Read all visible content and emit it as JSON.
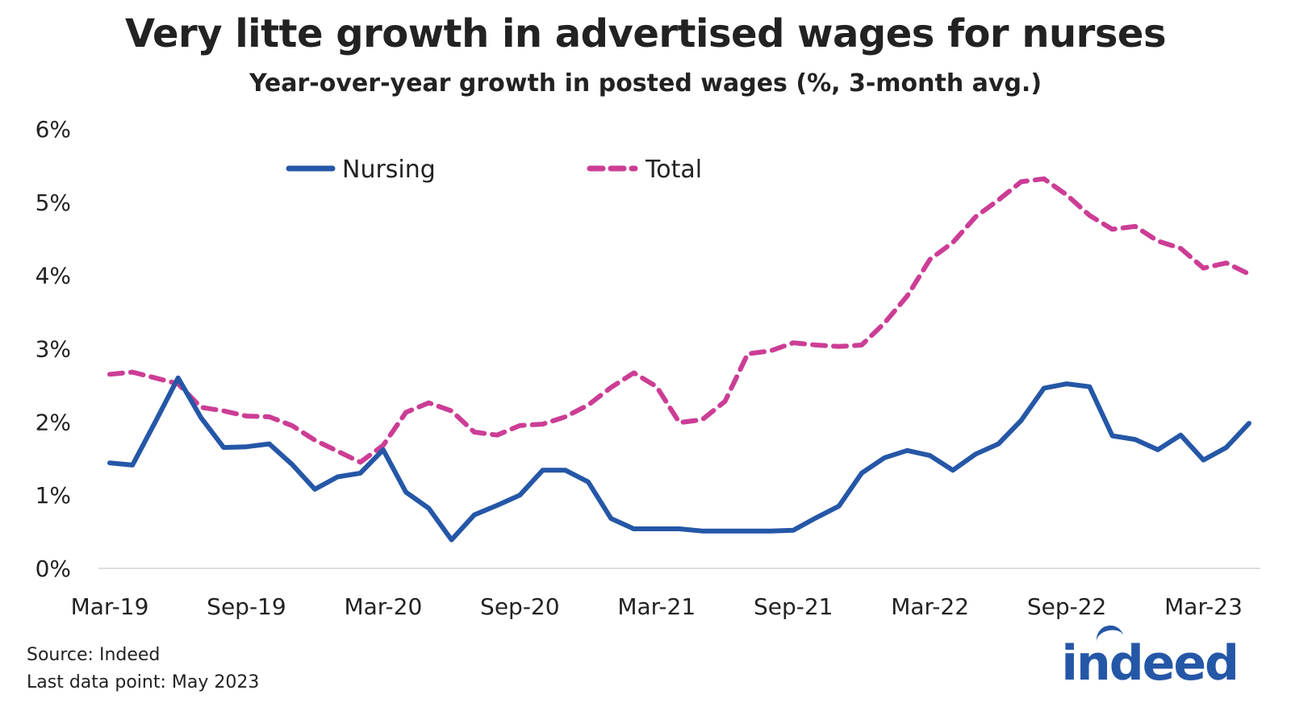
{
  "title": "Very litte growth in advertised wages for nurses",
  "subtitle": "Year-over-year growth in posted wages (%, 3-month avg.)",
  "footer": {
    "source": "Source: Indeed",
    "last_data_point": "Last data point: May 2023"
  },
  "logo_text": "indeed",
  "colors": {
    "nursing": "#2557a7",
    "total": "#cc3d95",
    "axis": "#dddddd",
    "text": "#222222"
  },
  "chart_data": {
    "type": "line",
    "title": "Very litte growth in advertised wages for nurses",
    "subtitle": "Year-over-year growth in posted wages (%, 3-month avg.)",
    "xlabel": "",
    "ylabel": "",
    "ylim": [
      0,
      6
    ],
    "yticks": [
      0,
      1,
      2,
      3,
      4,
      5,
      6
    ],
    "ytick_labels": [
      "0%",
      "1%",
      "2%",
      "3%",
      "4%",
      "5%",
      "6%"
    ],
    "xtick_labels": [
      "Mar-19",
      "Sep-19",
      "Mar-20",
      "Sep-20",
      "Mar-21",
      "Sep-21",
      "Mar-22",
      "Sep-22",
      "Mar-23"
    ],
    "xtick_indices": [
      0,
      6,
      12,
      18,
      24,
      30,
      36,
      42,
      48
    ],
    "x": [
      "Mar-19",
      "Apr-19",
      "May-19",
      "Jun-19",
      "Jul-19",
      "Aug-19",
      "Sep-19",
      "Oct-19",
      "Nov-19",
      "Dec-19",
      "Jan-20",
      "Feb-20",
      "Mar-20",
      "Apr-20",
      "May-20",
      "Jun-20",
      "Jul-20",
      "Aug-20",
      "Sep-20",
      "Oct-20",
      "Nov-20",
      "Dec-20",
      "Jan-21",
      "Feb-21",
      "Mar-21",
      "Apr-21",
      "May-21",
      "Jun-21",
      "Jul-21",
      "Aug-21",
      "Sep-21",
      "Oct-21",
      "Nov-21",
      "Dec-21",
      "Jan-22",
      "Feb-22",
      "Mar-22",
      "Apr-22",
      "May-22",
      "Jun-22",
      "Jul-22",
      "Aug-22",
      "Sep-22",
      "Oct-22",
      "Nov-22",
      "Dec-22",
      "Jan-23",
      "Feb-23",
      "Mar-23",
      "Apr-23",
      "May-23"
    ],
    "legend_position": "top-left",
    "series": [
      {
        "name": "Nursing",
        "style": "solid",
        "values": [
          1.44,
          1.41,
          2.0,
          2.6,
          2.06,
          1.65,
          1.66,
          1.7,
          1.42,
          1.08,
          1.25,
          1.3,
          1.62,
          1.04,
          0.82,
          0.39,
          0.73,
          0.86,
          1.0,
          1.34,
          1.34,
          1.18,
          0.68,
          0.54,
          0.54,
          0.54,
          0.51,
          0.51,
          0.51,
          0.51,
          0.52,
          0.69,
          0.85,
          1.3,
          1.51,
          1.61,
          1.54,
          1.34,
          1.56,
          1.7,
          2.02,
          2.46,
          2.52,
          2.48,
          1.81,
          1.76,
          1.62,
          1.82,
          1.48,
          1.65,
          1.98
        ]
      },
      {
        "name": "Total",
        "style": "dashed",
        "values": [
          2.65,
          2.68,
          2.6,
          2.52,
          2.2,
          2.15,
          2.08,
          2.07,
          1.95,
          1.75,
          1.6,
          1.45,
          1.68,
          2.13,
          2.26,
          2.15,
          1.86,
          1.82,
          1.95,
          1.97,
          2.07,
          2.23,
          2.47,
          2.67,
          2.48,
          1.99,
          2.03,
          2.28,
          2.93,
          2.97,
          3.08,
          3.05,
          3.03,
          3.05,
          3.35,
          3.72,
          4.22,
          4.45,
          4.8,
          5.03,
          5.28,
          5.32,
          5.1,
          4.82,
          4.63,
          4.67,
          4.47,
          4.37,
          4.1,
          4.17,
          4.02
        ]
      }
    ]
  }
}
